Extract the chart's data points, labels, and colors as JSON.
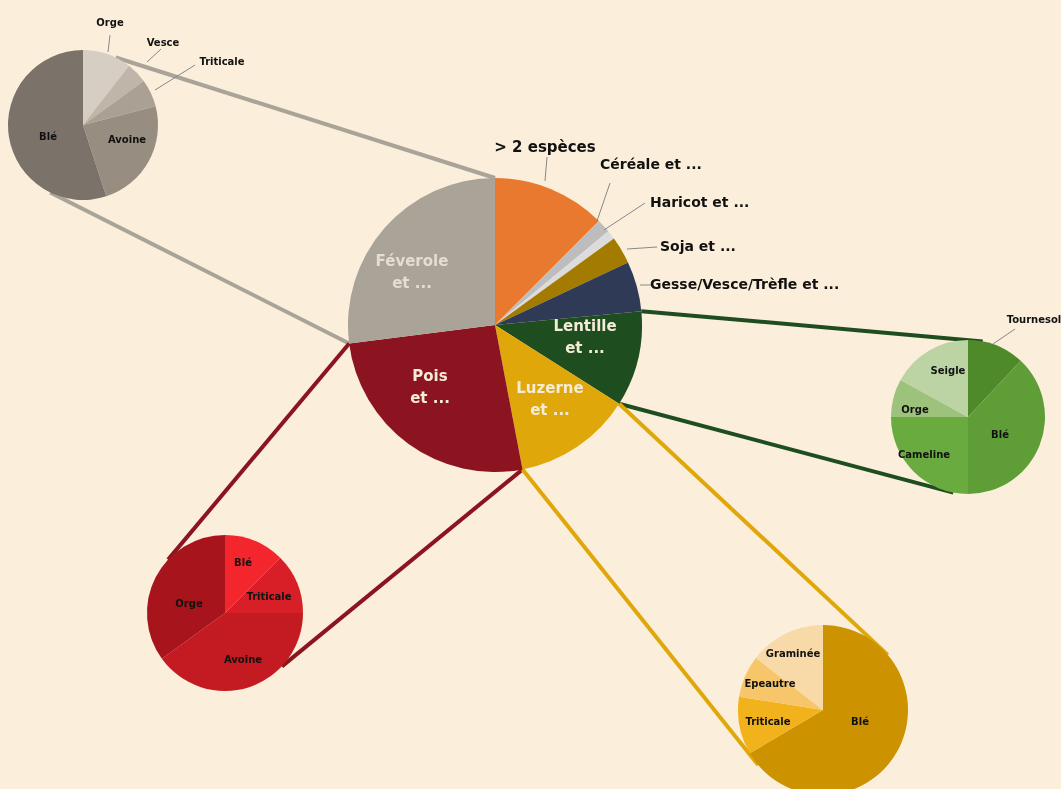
{
  "chart_data": [
    {
      "type": "pie",
      "categories": [
        "Orge",
        "Vesce",
        "Triticale",
        "Avoine",
        "Blé"
      ],
      "values": [
        10.5,
        4.5,
        6,
        24,
        55
      ],
      "colors": [
        "#d6cec2",
        "#bfb6a9",
        "#aaa194",
        "#978e81",
        "#7b736a"
      ]
    },
    {
      "type": "pie",
      "categories": [
        "> 2 espèces",
        "Céréale et ...",
        "Haricot et ...",
        "Soja et ...",
        "Gesse/Vesce/Trèfle et ...",
        "Lentille et ...",
        "Luzerne et ...",
        "Pois et ...",
        "Féverole et ..."
      ],
      "values": [
        12.5,
        1.5,
        1,
        3,
        5.5,
        10.5,
        13,
        26,
        27
      ],
      "colors": [
        "#e8792e",
        "#bdbdbd",
        "#dcdcdc",
        "#a27b00",
        "#2f3a56",
        "#1e4d1f",
        "#e0a70a",
        "#8c1420",
        "#a9a398"
      ]
    },
    {
      "type": "pie",
      "categories": [
        "Tournesol",
        "Blé",
        "Cameline",
        "Orge",
        "Seigle"
      ],
      "values": [
        12,
        38,
        25,
        8,
        17
      ],
      "colors": [
        "#4f8a2a",
        "#5f9e36",
        "#6aab40",
        "#9cc27b",
        "#bcd3a4"
      ]
    },
    {
      "type": "pie",
      "categories": [
        "Blé",
        "Triticale",
        "Avoine",
        "Orge"
      ],
      "values": [
        12.5,
        12.5,
        40,
        35
      ],
      "colors": [
        "#f2262c",
        "#d81e26",
        "#c41a22",
        "#a8141c"
      ]
    },
    {
      "type": "pie",
      "categories": [
        "Blé",
        "Triticale",
        "Epeautre",
        "Graminée"
      ],
      "values": [
        66.5,
        11,
        8,
        14.5
      ],
      "colors": [
        "#cc9200",
        "#f1b21c",
        "#f7c66a",
        "#f8d9a8"
      ]
    }
  ]
}
